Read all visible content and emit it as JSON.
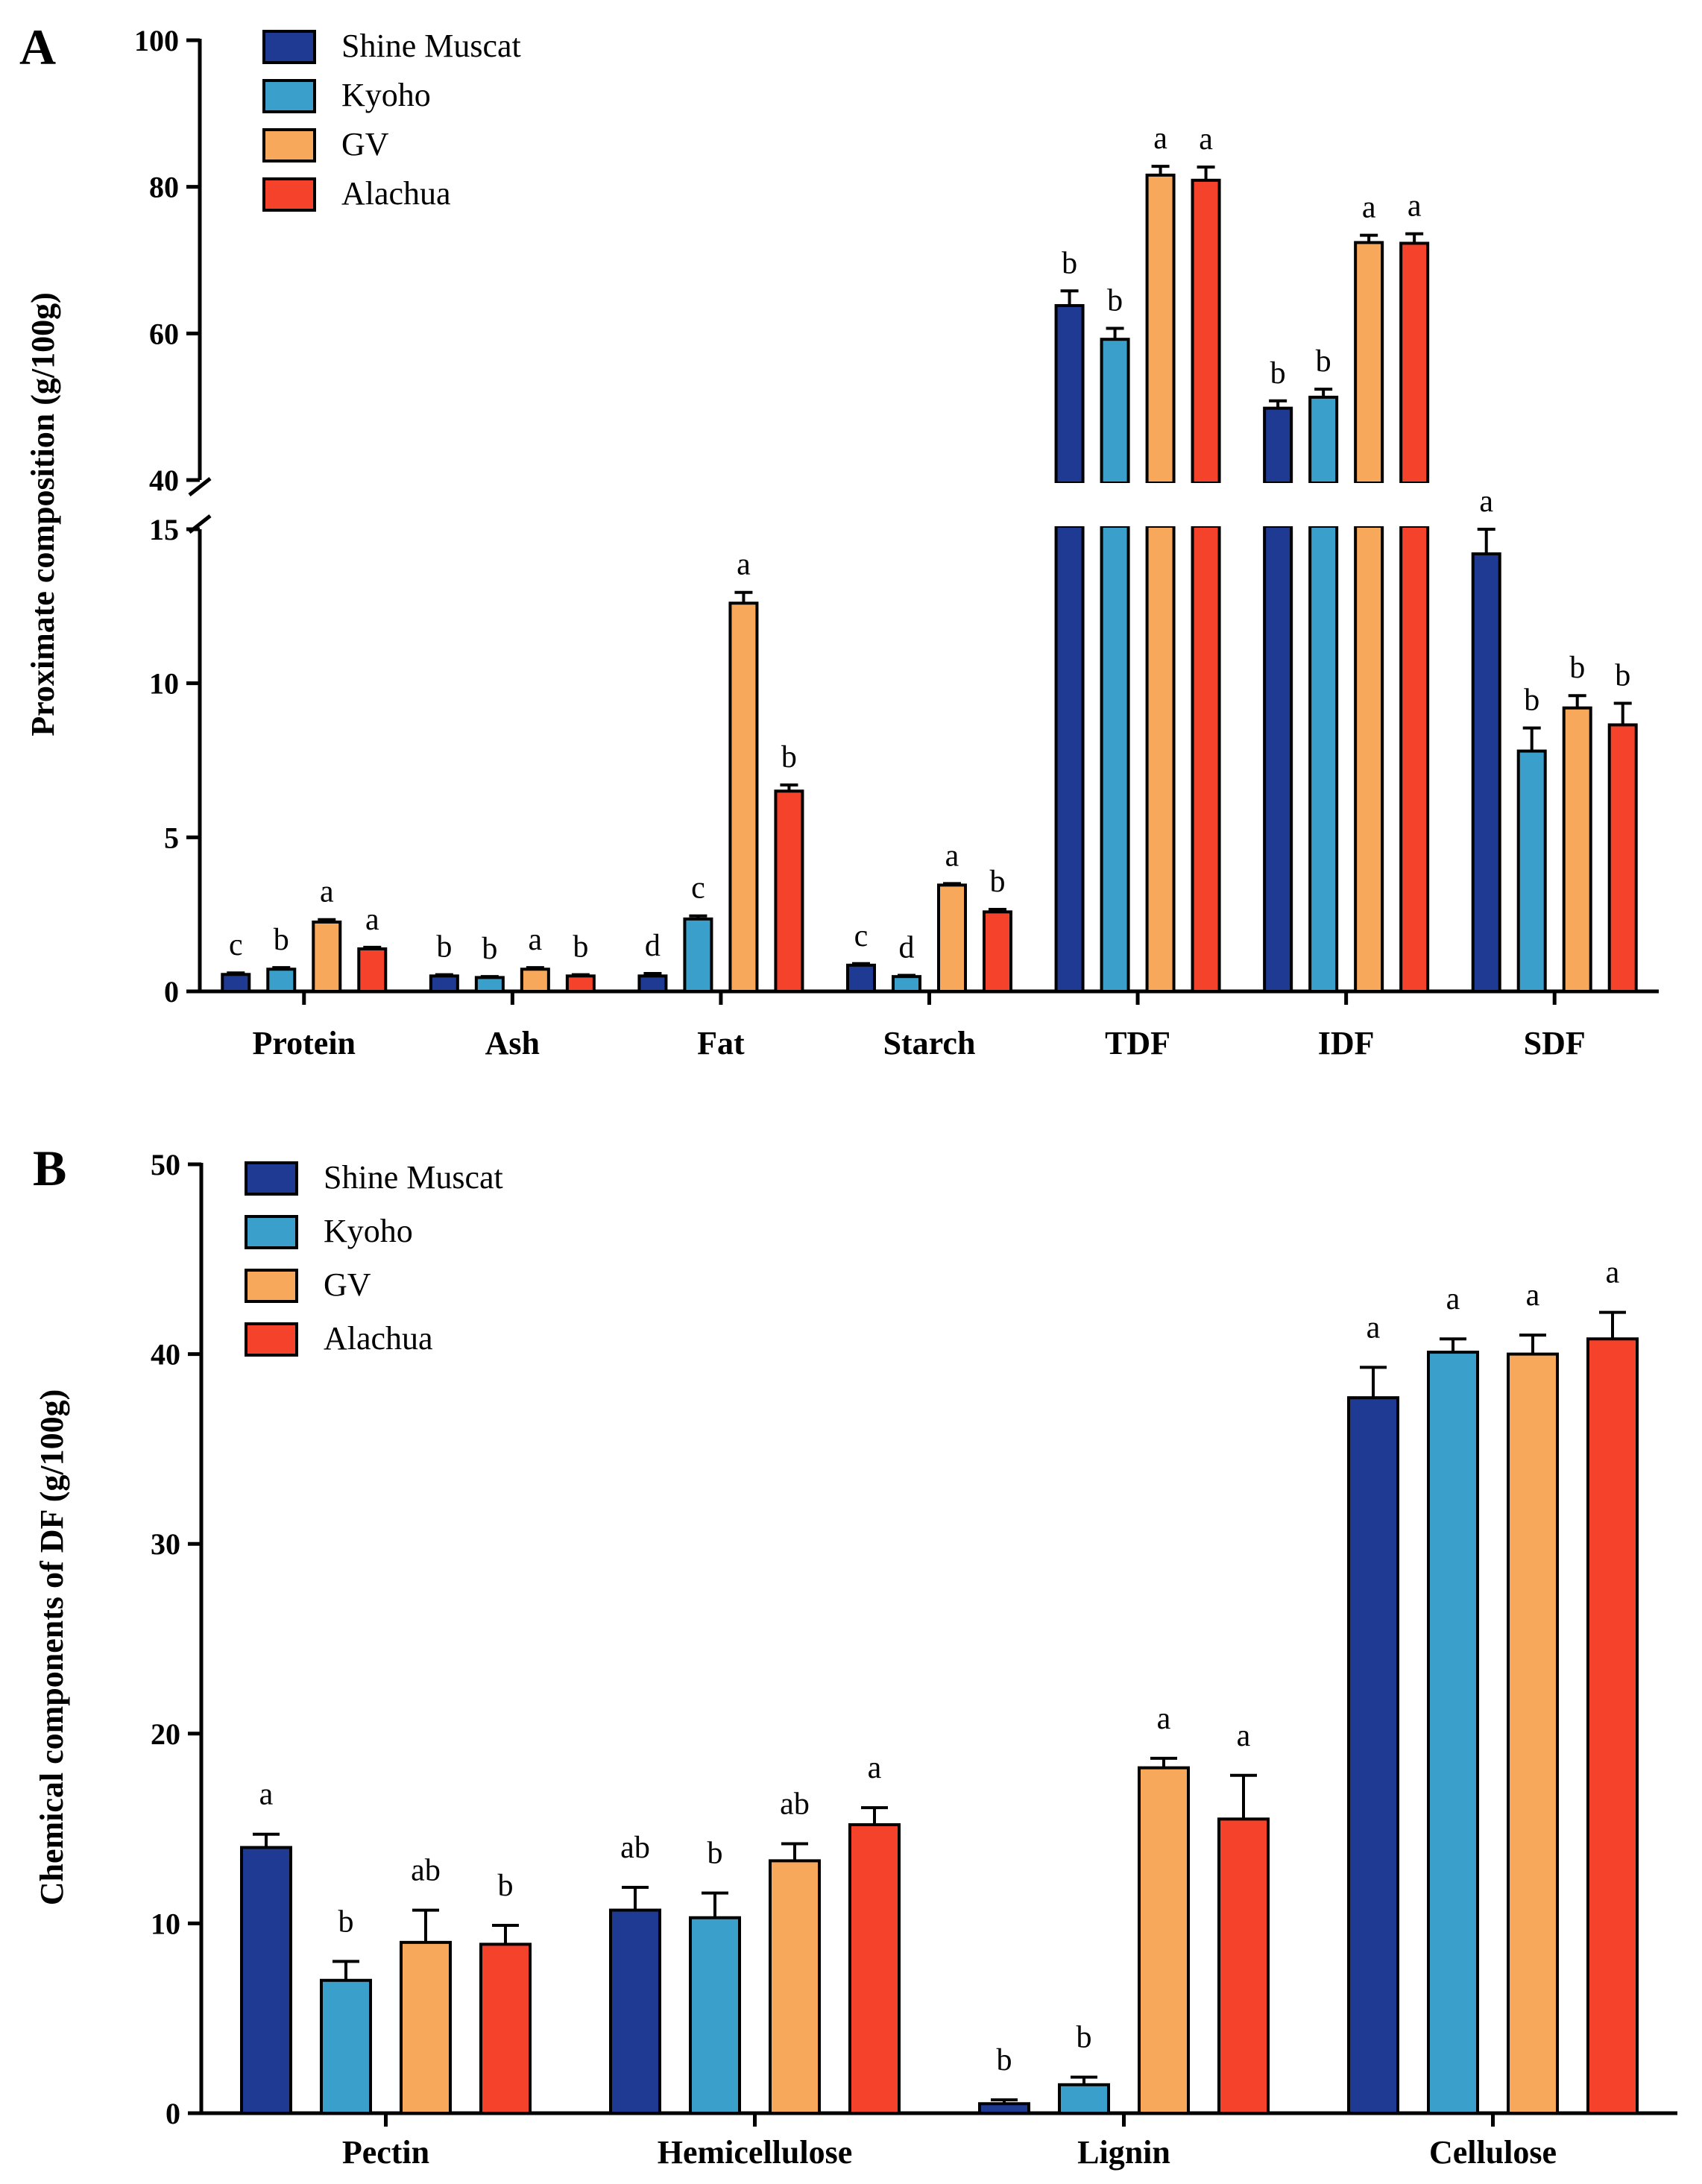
{
  "colors": {
    "Shine Muscat": "#1f3a93",
    "Kyoho": "#3a9fcb",
    "GV": "#f7a85a",
    "Alachua": "#f5432b"
  },
  "chart_data": [
    {
      "panel": "A",
      "type": "bar",
      "ylabel": "Proximate composition   (g/100g)",
      "categories": [
        "Protein",
        "Ash",
        "Fat",
        "Starch",
        "TDF",
        "IDF",
        "SDF"
      ],
      "axis_break": {
        "lower": [
          0,
          15
        ],
        "upper": [
          40,
          100
        ],
        "lower_ticks": [
          "0",
          "5",
          "10",
          "15"
        ],
        "upper_ticks": [
          "40",
          "60",
          "80",
          "100"
        ]
      },
      "series": [
        {
          "name": "Shine Muscat",
          "values": [
            0.55,
            0.5,
            0.5,
            0.85,
            63.8,
            49.8,
            14.2
          ],
          "errors": [
            0.05,
            0.04,
            0.08,
            0.05,
            2.0,
            1.0,
            1.3
          ],
          "labels": [
            "c",
            "b",
            "d",
            "c",
            "b",
            "b",
            "a"
          ]
        },
        {
          "name": "Kyoho",
          "values": [
            0.72,
            0.45,
            2.35,
            0.48,
            59.2,
            51.3,
            7.8
          ],
          "errors": [
            0.05,
            0.03,
            0.1,
            0.04,
            1.5,
            1.1,
            0.75
          ],
          "labels": [
            "b",
            "b",
            "c",
            "d",
            "b",
            "b",
            "b"
          ]
        },
        {
          "name": "GV",
          "values": [
            2.25,
            0.72,
            12.6,
            3.45,
            81.6,
            72.4,
            9.2
          ],
          "errors": [
            0.08,
            0.05,
            0.35,
            0.05,
            1.2,
            1.0,
            0.4
          ],
          "labels": [
            "a",
            "a",
            "a",
            "a",
            "a",
            "a",
            "b"
          ]
        },
        {
          "name": "Alachua",
          "values": [
            1.38,
            0.5,
            6.5,
            2.58,
            80.9,
            72.3,
            8.65
          ],
          "errors": [
            0.05,
            0.04,
            0.2,
            0.08,
            1.8,
            1.3,
            0.7
          ],
          "labels": [
            "a",
            "b",
            "b",
            "b",
            "a",
            "a",
            "b"
          ]
        }
      ]
    },
    {
      "panel": "B",
      "type": "bar",
      "ylabel": "Chemical components of DF (g/100g)",
      "categories": [
        "Pectin",
        "Hemicellulose",
        "Lignin",
        "Cellulose"
      ],
      "ylim": [
        0,
        50
      ],
      "yticks": [
        "0",
        "10",
        "20",
        "30",
        "40",
        "50"
      ],
      "series": [
        {
          "name": "Shine Muscat",
          "values": [
            14.0,
            10.7,
            0.5,
            37.7
          ],
          "errors": [
            0.7,
            1.2,
            0.2,
            1.6
          ],
          "labels": [
            "a",
            "ab",
            "b",
            "a"
          ]
        },
        {
          "name": "Kyoho",
          "values": [
            7.0,
            10.3,
            1.5,
            40.1
          ],
          "errors": [
            1.0,
            1.3,
            0.4,
            0.7
          ],
          "labels": [
            "b",
            "b",
            "b",
            "a"
          ]
        },
        {
          "name": "GV",
          "values": [
            9.0,
            13.3,
            18.2,
            40.0
          ],
          "errors": [
            1.7,
            0.9,
            0.5,
            1.0
          ],
          "labels": [
            "ab",
            "ab",
            "a",
            "a"
          ]
        },
        {
          "name": "Alachua",
          "values": [
            8.9,
            15.2,
            15.5,
            40.8
          ],
          "errors": [
            1.0,
            0.9,
            2.3,
            1.4
          ],
          "labels": [
            "b",
            "a",
            "a",
            "a"
          ]
        }
      ]
    }
  ]
}
